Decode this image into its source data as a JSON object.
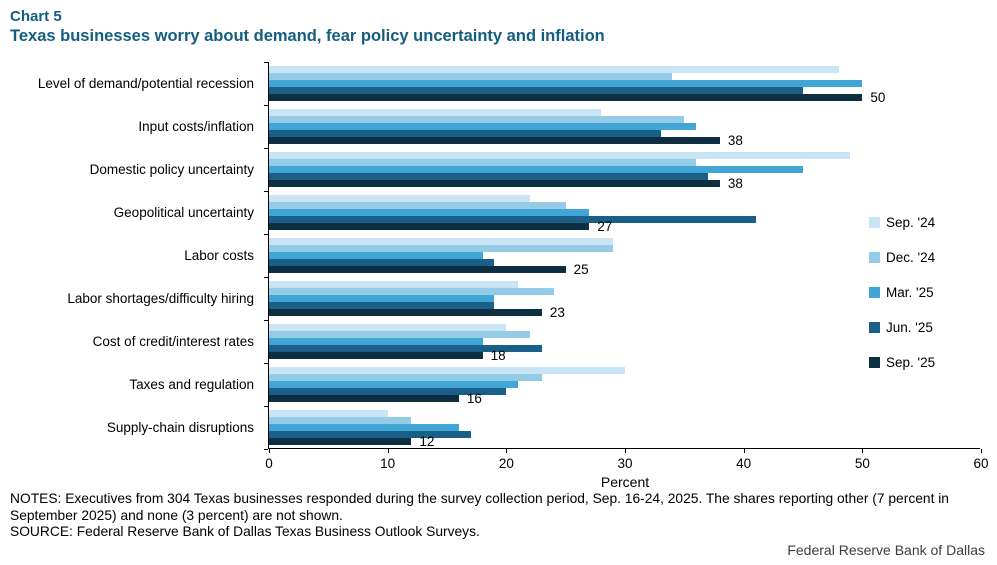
{
  "header": {
    "chart_label": "Chart 5",
    "title": "Texas businesses worry about demand, fear policy uncertainty and inflation"
  },
  "chart_data": {
    "type": "bar",
    "orientation": "horizontal",
    "title": "Texas businesses worry about demand, fear policy uncertainty and inflation",
    "xlabel": "Percent",
    "xlim": [
      0,
      60
    ],
    "xticks": [
      0,
      10,
      20,
      30,
      40,
      50,
      60
    ],
    "grid": false,
    "legend_position": "center-right",
    "categories": [
      "Level of demand/potential recession",
      "Input costs/inflation",
      "Domestic policy uncertainty",
      "Geopolitical uncertainty",
      "Labor costs",
      "Labor shortages/difficulty hiring",
      "Cost of credit/interest rates",
      "Taxes and regulation",
      "Supply-chain disruptions"
    ],
    "series": [
      {
        "name": "Sep. '24",
        "color": "#c9e4f4",
        "values": [
          48,
          28,
          49,
          22,
          29,
          21,
          20,
          30,
          10
        ]
      },
      {
        "name": "Dec. '24",
        "color": "#94cce8",
        "values": [
          34,
          35,
          36,
          25,
          29,
          24,
          22,
          23,
          12
        ]
      },
      {
        "name": "Mar. '25",
        "color": "#41a5d6",
        "values": [
          50,
          36,
          45,
          27,
          18,
          19,
          18,
          21,
          16
        ]
      },
      {
        "name": "Jun. '25",
        "color": "#1a5f87",
        "values": [
          45,
          33,
          37,
          41,
          19,
          19,
          23,
          20,
          17
        ]
      },
      {
        "name": "Sep. '25",
        "color": "#0e2e42",
        "values": [
          50,
          38,
          38,
          27,
          25,
          23,
          18,
          16,
          12
        ]
      }
    ],
    "data_labels": {
      "labeled_series": "Sep. '25",
      "values": [
        50,
        38,
        38,
        27,
        25,
        23,
        18,
        16,
        12
      ]
    }
  },
  "notes": {
    "notes_text": "NOTES: Executives from 304 Texas businesses responded during the survey collection period, Sep. 16-24, 2025. The shares reporting other (7 percent in September 2025) and none (3 percent) are not shown.",
    "source_text": "SOURCE: Federal Reserve Bank of Dallas Texas Business Outlook Surveys."
  },
  "footer": {
    "branding": "Federal Reserve Bank of Dallas"
  }
}
